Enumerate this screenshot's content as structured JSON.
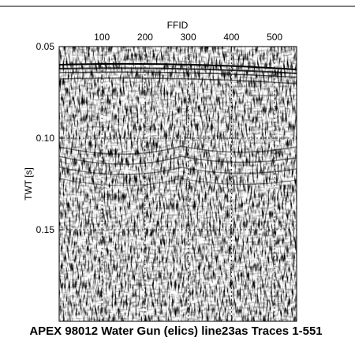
{
  "chart_data": {
    "type": "image",
    "title": "APEX 98012 Water Gun (elics) line23as Traces 1-551",
    "x_label": "FFID",
    "y_label": "TWT [s]",
    "xlim": [
      1,
      551
    ],
    "xticks": [
      100,
      200,
      300,
      400,
      500
    ],
    "ylim": [
      0.05,
      0.2
    ],
    "yticks": [
      0.05,
      {
        "value": 0.1,
        "label": "0.10"
      },
      0.15
    ],
    "y_inverted": true,
    "grid": true
  }
}
